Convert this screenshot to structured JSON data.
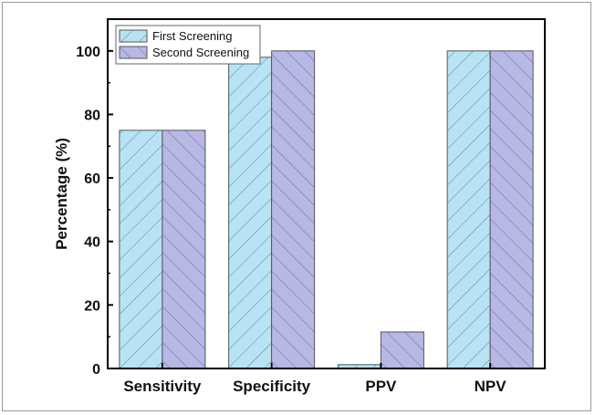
{
  "chart_data": {
    "type": "bar",
    "title": "",
    "xlabel": "",
    "ylabel": "Percentage (%)",
    "ylim": [
      0,
      110
    ],
    "yticks": [
      0,
      20,
      40,
      60,
      80,
      100
    ],
    "categories": [
      "Sensitivity",
      "Specificity",
      "PPV",
      "NPV"
    ],
    "series": [
      {
        "name": "First Screening",
        "values": [
          75,
          98,
          1.2,
          100
        ],
        "color": "#b7e3f5",
        "pattern": "hatch-forward"
      },
      {
        "name": "Second Screening",
        "values": [
          75,
          100,
          11.5,
          100
        ],
        "color": "#b8b8e6",
        "pattern": "hatch-back"
      }
    ],
    "legend": {
      "placement": "top-left"
    },
    "grid": false
  }
}
